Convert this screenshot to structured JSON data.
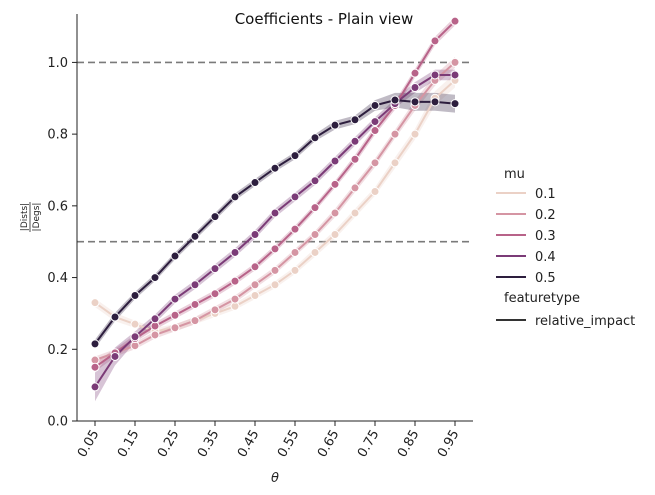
{
  "chart_data": {
    "type": "line",
    "title": "Coefficients - Plain view",
    "xlabel": "θ",
    "ylabel_numerator": "|Dists|",
    "ylabel_denominator": "|Degs|",
    "x": [
      0.05,
      0.1,
      0.15,
      0.2,
      0.25,
      0.3,
      0.35,
      0.4,
      0.45,
      0.5,
      0.55,
      0.6,
      0.65,
      0.7,
      0.75,
      0.8,
      0.85,
      0.9,
      0.95
    ],
    "xticks": [
      "0.05",
      "0.15",
      "0.25",
      "0.35",
      "0.45",
      "0.55",
      "0.65",
      "0.75",
      "0.85",
      "0.95"
    ],
    "xtick_values": [
      0.05,
      0.15,
      0.25,
      0.35,
      0.45,
      0.55,
      0.65,
      0.75,
      0.85,
      0.95
    ],
    "xlim": [
      0.005,
      0.995
    ],
    "ylim": [
      0.0,
      1.135
    ],
    "yticks": [
      "0.0",
      "0.2",
      "0.4",
      "0.6",
      "0.8",
      "1.0"
    ],
    "ytick_values": [
      0.0,
      0.2,
      0.4,
      0.6,
      0.8,
      1.0
    ],
    "reference_lines": [
      1.0,
      0.5
    ],
    "legend": {
      "placement": "right",
      "hue_title": "mu",
      "style_title": "featuretype",
      "style_entries": [
        "relative_impact"
      ]
    },
    "series": [
      {
        "name": "0.1",
        "color": "#ebd1c6",
        "values": [
          0.33,
          0.29,
          0.27,
          0.25,
          0.26,
          0.28,
          0.3,
          0.32,
          0.35,
          0.38,
          0.42,
          0.47,
          0.52,
          0.58,
          0.64,
          0.72,
          0.8,
          0.9,
          0.95
        ],
        "band": [
          0.012,
          0.012,
          0.01,
          0.01,
          0.01,
          0.01,
          0.01,
          0.01,
          0.01,
          0.01,
          0.01,
          0.012,
          0.012,
          0.012,
          0.012,
          0.015,
          0.015,
          0.02,
          0.02
        ]
      },
      {
        "name": "0.2",
        "color": "#d595a3",
        "values": [
          0.17,
          0.19,
          0.21,
          0.24,
          0.26,
          0.28,
          0.31,
          0.34,
          0.38,
          0.42,
          0.47,
          0.52,
          0.58,
          0.65,
          0.72,
          0.8,
          0.88,
          0.95,
          1.0
        ],
        "band": [
          0.01,
          0.01,
          0.01,
          0.01,
          0.01,
          0.01,
          0.01,
          0.01,
          0.01,
          0.01,
          0.01,
          0.01,
          0.012,
          0.012,
          0.012,
          0.012,
          0.015,
          0.015,
          0.015
        ]
      },
      {
        "name": "0.3",
        "color": "#b86389",
        "values": [
          0.15,
          0.19,
          0.23,
          0.265,
          0.295,
          0.325,
          0.355,
          0.39,
          0.43,
          0.48,
          0.535,
          0.595,
          0.66,
          0.73,
          0.81,
          0.88,
          0.97,
          1.06,
          1.115
        ],
        "band": [
          0.012,
          0.012,
          0.01,
          0.01,
          0.01,
          0.01,
          0.01,
          0.01,
          0.01,
          0.01,
          0.01,
          0.01,
          0.01,
          0.012,
          0.012,
          0.012,
          0.012,
          0.012,
          0.012
        ]
      },
      {
        "name": "0.4",
        "color": "#7b3b77",
        "values": [
          0.095,
          0.18,
          0.235,
          0.285,
          0.34,
          0.38,
          0.425,
          0.47,
          0.52,
          0.58,
          0.625,
          0.67,
          0.725,
          0.78,
          0.835,
          0.885,
          0.93,
          0.965,
          0.965
        ],
        "band": [
          0.04,
          0.025,
          0.015,
          0.012,
          0.012,
          0.012,
          0.012,
          0.012,
          0.012,
          0.012,
          0.012,
          0.012,
          0.012,
          0.012,
          0.012,
          0.012,
          0.015,
          0.015,
          0.015
        ]
      },
      {
        "name": "0.5",
        "color": "#2d1e3e",
        "values": [
          0.215,
          0.29,
          0.35,
          0.4,
          0.46,
          0.515,
          0.57,
          0.625,
          0.665,
          0.705,
          0.74,
          0.79,
          0.825,
          0.84,
          0.88,
          0.895,
          0.89,
          0.89,
          0.885
        ],
        "band": [
          0.012,
          0.012,
          0.01,
          0.01,
          0.01,
          0.01,
          0.01,
          0.01,
          0.01,
          0.01,
          0.01,
          0.01,
          0.012,
          0.012,
          0.015,
          0.02,
          0.025,
          0.025,
          0.025
        ]
      }
    ]
  }
}
